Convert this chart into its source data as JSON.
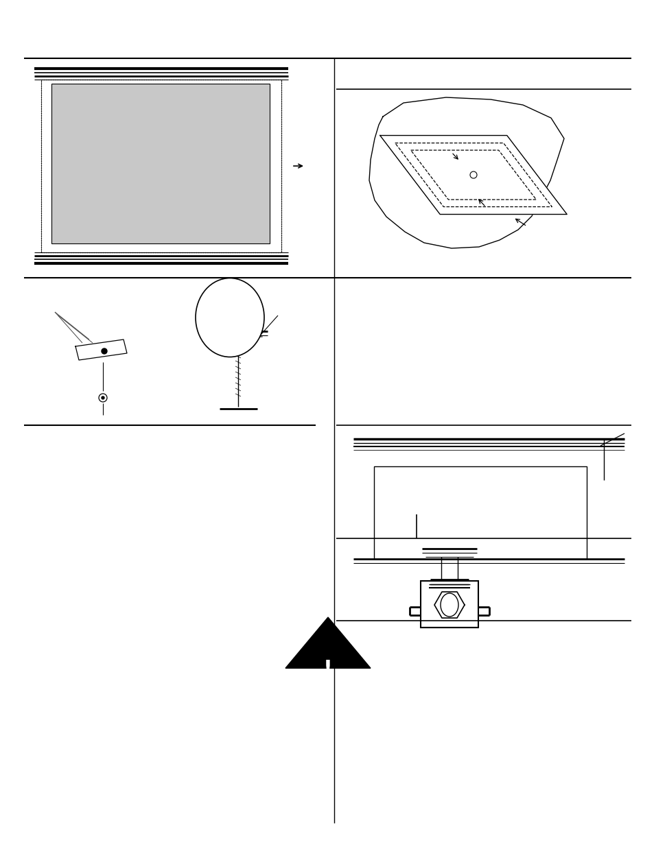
{
  "bg_color": "#ffffff",
  "fig_width": 9.54,
  "fig_height": 12.35,
  "gray_fill": "#c8c8c8"
}
